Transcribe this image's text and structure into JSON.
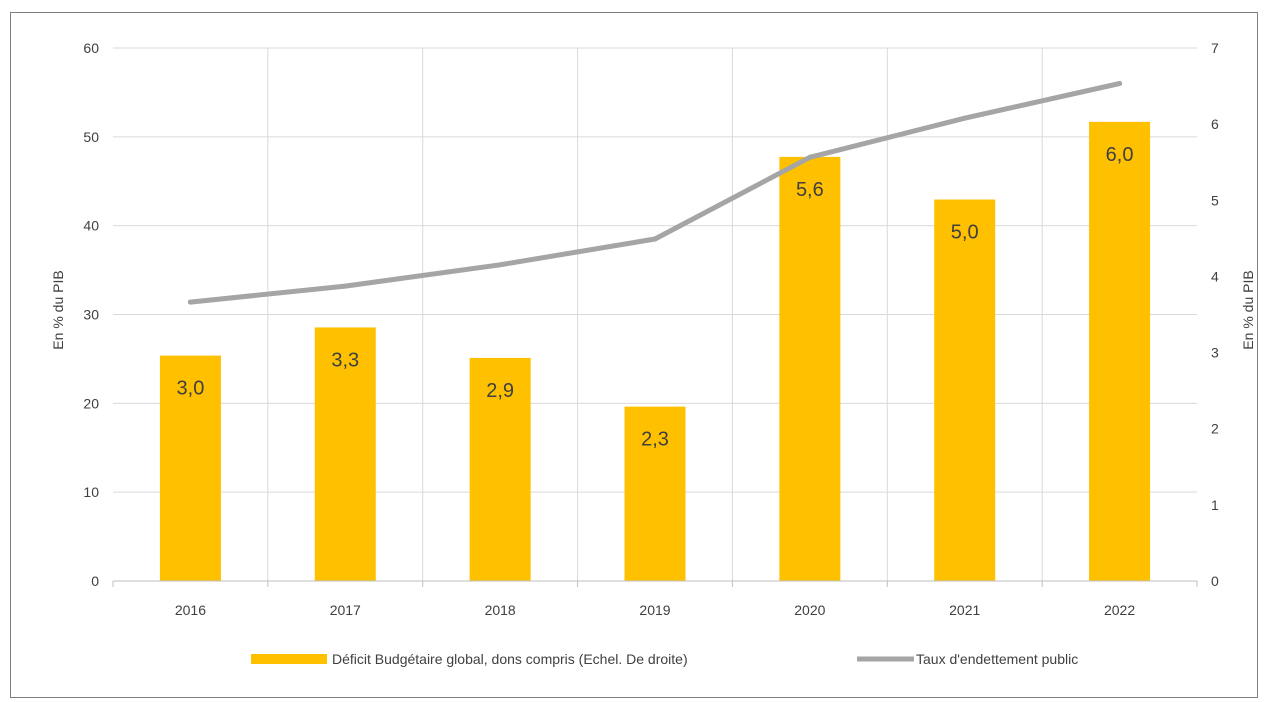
{
  "chart_data": {
    "type": "bar",
    "categories": [
      "2016",
      "2017",
      "2018",
      "2019",
      "2020",
      "2021",
      "2022"
    ],
    "series": [
      {
        "name": "Déficit Budgétaire global, dons compris (Echel. De droite)",
        "type": "bar",
        "axis": "right",
        "color": "#FFC000",
        "values": [
          2.96,
          3.33,
          2.93,
          2.29,
          5.57,
          5.01,
          6.03
        ],
        "labels": [
          "3,0",
          "3,3",
          "2,9",
          "2,3",
          "5,6",
          "5,0",
          "6,0"
        ]
      },
      {
        "name": "Taux d'endettement public",
        "type": "line",
        "axis": "left",
        "color": "#A5A5A5",
        "values": [
          31.4,
          33.2,
          35.6,
          38.5,
          47.7,
          52.1,
          56.0
        ]
      }
    ],
    "left_axis": {
      "label": "En % du PIB",
      "min": 0,
      "max": 60,
      "ticks": [
        "0",
        "10",
        "20",
        "30",
        "40",
        "50",
        "60"
      ]
    },
    "right_axis": {
      "label": "En % du PIB",
      "min": 0,
      "max": 7,
      "ticks": [
        "0",
        "1",
        "2",
        "3",
        "4",
        "5",
        "6",
        "7"
      ]
    },
    "grid": true,
    "legend_position": "bottom"
  }
}
